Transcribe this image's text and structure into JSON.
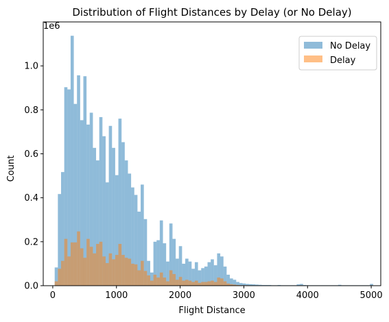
{
  "chart_data": {
    "type": "bar",
    "title": "Distribution of Flight Distances by Delay (or No Delay)",
    "xlabel": "Flight Distance",
    "ylabel": "Count",
    "y_offset_text": "1e6",
    "xlim": [
      -150,
      5150
    ],
    "ylim": [
      0,
      1.2
    ],
    "x_ticks": [
      0,
      1000,
      2000,
      3000,
      4000,
      5000
    ],
    "y_ticks": [
      0.0,
      0.2,
      0.4,
      0.6,
      0.8,
      1.0
    ],
    "y_tick_labels": [
      "0.0",
      "0.2",
      "0.4",
      "0.6",
      "0.8",
      "1.0"
    ],
    "legend_position": "top-right",
    "bin_start": 30,
    "bin_width": 50,
    "series": [
      {
        "name": "No Delay",
        "color": "#1f77b4",
        "alpha": 0.5,
        "values": [
          0.083,
          0.417,
          0.517,
          0.903,
          0.893,
          1.137,
          0.827,
          0.957,
          0.753,
          0.953,
          0.733,
          0.787,
          0.627,
          0.57,
          0.767,
          0.68,
          0.47,
          0.727,
          0.627,
          0.503,
          0.76,
          0.653,
          0.57,
          0.51,
          0.447,
          0.413,
          0.337,
          0.46,
          0.303,
          0.113,
          0.06,
          0.2,
          0.207,
          0.297,
          0.193,
          0.11,
          0.283,
          0.213,
          0.123,
          0.18,
          0.1,
          0.123,
          0.11,
          0.077,
          0.107,
          0.07,
          0.08,
          0.087,
          0.107,
          0.12,
          0.093,
          0.147,
          0.133,
          0.087,
          0.05,
          0.033,
          0.027,
          0.017,
          0.012,
          0.01,
          0.008,
          0.007,
          0.006,
          0.005,
          0.004,
          0.003,
          0.003,
          0.003,
          0.002,
          0.002,
          0.003,
          0.002,
          0.002,
          0.002,
          0.002,
          0.002,
          0.006,
          0.008,
          0.003,
          0.002,
          0.002,
          0.002,
          0.002,
          0.002,
          0.002,
          0.002,
          0.002,
          0.002,
          0.002,
          0.004,
          0.002,
          0.002,
          0.002,
          0.002,
          0.002,
          0.002,
          0.002,
          0.002,
          0.002,
          0.008
        ]
      },
      {
        "name": "Delay",
        "color": "#ff7f0e",
        "alpha": 0.5,
        "values": [
          0.02,
          0.077,
          0.113,
          0.213,
          0.133,
          0.197,
          0.197,
          0.247,
          0.17,
          0.127,
          0.213,
          0.177,
          0.147,
          0.19,
          0.2,
          0.133,
          0.103,
          0.147,
          0.12,
          0.14,
          0.19,
          0.14,
          0.127,
          0.123,
          0.1,
          0.097,
          0.07,
          0.113,
          0.067,
          0.047,
          0.023,
          0.05,
          0.037,
          0.06,
          0.037,
          0.02,
          0.07,
          0.053,
          0.027,
          0.04,
          0.023,
          0.027,
          0.023,
          0.017,
          0.023,
          0.013,
          0.017,
          0.017,
          0.02,
          0.023,
          0.017,
          0.037,
          0.033,
          0.02,
          0.01,
          0.007,
          0.005,
          0.003,
          0.002,
          0.002,
          0.002,
          0.001,
          0.001,
          0.001,
          0.001,
          0.001,
          0.001,
          0.001,
          0,
          0,
          0,
          0,
          0,
          0,
          0,
          0,
          0.001,
          0.002,
          0.001,
          0,
          0,
          0,
          0,
          0,
          0,
          0,
          0,
          0,
          0,
          0.001,
          0,
          0,
          0,
          0,
          0,
          0,
          0,
          0,
          0,
          0.002
        ]
      }
    ]
  }
}
